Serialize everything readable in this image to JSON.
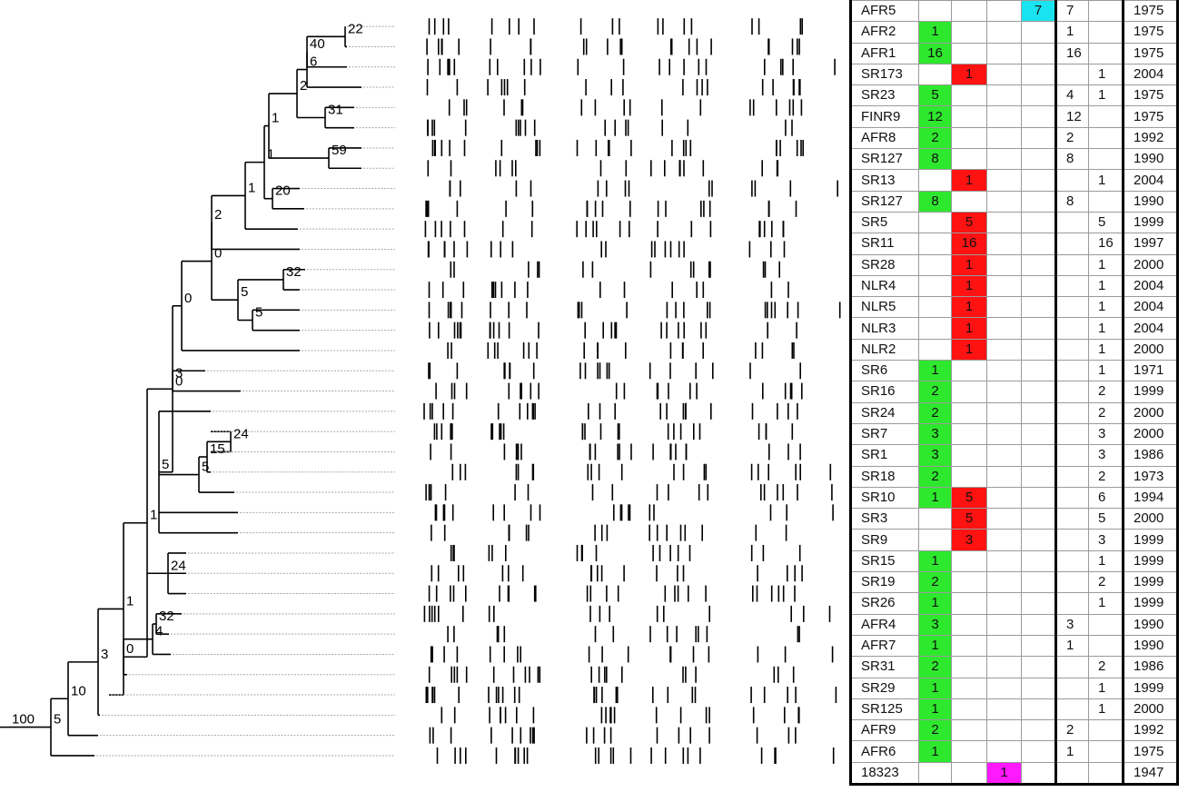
{
  "tree": {
    "bootstrap_values": [
      "22",
      "40",
      "6",
      "2",
      "31",
      "1",
      "59",
      "1",
      "20",
      "1",
      "2",
      "0",
      "32",
      "5",
      "5",
      "0",
      "0",
      "0",
      "3",
      "5",
      "1",
      "5",
      "24",
      "15",
      "24",
      "1",
      "4",
      "0",
      "32",
      "3",
      "10",
      "5",
      "100"
    ]
  },
  "table": {
    "group_colors": {
      "g": "#2ee82e",
      "r": "#ff1212",
      "c": "#19e3ee",
      "m": "#ff19ff"
    },
    "rows": [
      {
        "name": "AFR5",
        "g": "",
        "r": "",
        "m": "",
        "c": "7",
        "a": "7",
        "b": "",
        "year": "1975"
      },
      {
        "name": "AFR2",
        "g": "1",
        "r": "",
        "m": "",
        "c": "",
        "a": "1",
        "b": "",
        "year": "1975"
      },
      {
        "name": "AFR1",
        "g": "16",
        "r": "",
        "m": "",
        "c": "",
        "a": "16",
        "b": "",
        "year": "1975"
      },
      {
        "name": "SR173",
        "g": "",
        "r": "1",
        "m": "",
        "c": "",
        "a": "",
        "b": "1",
        "year": "2004"
      },
      {
        "name": "SR23",
        "g": "5",
        "r": "",
        "m": "",
        "c": "",
        "a": "4",
        "b": "1",
        "year": "1975"
      },
      {
        "name": "FINR9",
        "g": "12",
        "r": "",
        "m": "",
        "c": "",
        "a": "12",
        "b": "",
        "year": "1975"
      },
      {
        "name": "AFR8",
        "g": "2",
        "r": "",
        "m": "",
        "c": "",
        "a": "2",
        "b": "",
        "year": "1992"
      },
      {
        "name": "SR127",
        "g": "8",
        "r": "",
        "m": "",
        "c": "",
        "a": "8",
        "b": "",
        "year": "1990"
      },
      {
        "name": "SR13",
        "g": "",
        "r": "1",
        "m": "",
        "c": "",
        "a": "",
        "b": "1",
        "year": "2004"
      },
      {
        "name": "SR127",
        "g": "8",
        "r": "",
        "m": "",
        "c": "",
        "a": "8",
        "b": "",
        "year": "1990"
      },
      {
        "name": "SR5",
        "g": "",
        "r": "5",
        "m": "",
        "c": "",
        "a": "",
        "b": "5",
        "year": "1999"
      },
      {
        "name": "SR11",
        "g": "",
        "r": "16",
        "m": "",
        "c": "",
        "a": "",
        "b": "16",
        "year": "1997"
      },
      {
        "name": "SR28",
        "g": "",
        "r": "1",
        "m": "",
        "c": "",
        "a": "",
        "b": "1",
        "year": "2000"
      },
      {
        "name": "NLR4",
        "g": "",
        "r": "1",
        "m": "",
        "c": "",
        "a": "",
        "b": "1",
        "year": "2004"
      },
      {
        "name": "NLR5",
        "g": "",
        "r": "1",
        "m": "",
        "c": "",
        "a": "",
        "b": "1",
        "year": "2004"
      },
      {
        "name": "NLR3",
        "g": "",
        "r": "1",
        "m": "",
        "c": "",
        "a": "",
        "b": "1",
        "year": "2004"
      },
      {
        "name": "NLR2",
        "g": "",
        "r": "1",
        "m": "",
        "c": "",
        "a": "",
        "b": "1",
        "year": "2000"
      },
      {
        "name": "SR6",
        "g": "1",
        "r": "",
        "m": "",
        "c": "",
        "a": "",
        "b": "1",
        "year": "1971"
      },
      {
        "name": "SR16",
        "g": "2",
        "r": "",
        "m": "",
        "c": "",
        "a": "",
        "b": "2",
        "year": "1999"
      },
      {
        "name": "SR24",
        "g": "2",
        "r": "",
        "m": "",
        "c": "",
        "a": "",
        "b": "2",
        "year": "2000"
      },
      {
        "name": "SR7",
        "g": "3",
        "r": "",
        "m": "",
        "c": "",
        "a": "",
        "b": "3",
        "year": "2000"
      },
      {
        "name": "SR1",
        "g": "3",
        "r": "",
        "m": "",
        "c": "",
        "a": "",
        "b": "3",
        "year": "1986"
      },
      {
        "name": "SR18",
        "g": "2",
        "r": "",
        "m": "",
        "c": "",
        "a": "",
        "b": "2",
        "year": "1973"
      },
      {
        "name": "SR10",
        "g": "1",
        "r": "5",
        "m": "",
        "c": "",
        "a": "",
        "b": "6",
        "year": "1994"
      },
      {
        "name": "SR3",
        "g": "",
        "r": "5",
        "m": "",
        "c": "",
        "a": "",
        "b": "5",
        "year": "2000"
      },
      {
        "name": "SR9",
        "g": "",
        "r": "3",
        "m": "",
        "c": "",
        "a": "",
        "b": "3",
        "year": "1999"
      },
      {
        "name": "SR15",
        "g": "1",
        "r": "",
        "m": "",
        "c": "",
        "a": "",
        "b": "1",
        "year": "1999"
      },
      {
        "name": "SR19",
        "g": "2",
        "r": "",
        "m": "",
        "c": "",
        "a": "",
        "b": "2",
        "year": "1999"
      },
      {
        "name": "SR26",
        "g": "1",
        "r": "",
        "m": "",
        "c": "",
        "a": "",
        "b": "1",
        "year": "1999"
      },
      {
        "name": "AFR4",
        "g": "3",
        "r": "",
        "m": "",
        "c": "",
        "a": "3",
        "b": "",
        "year": "1990"
      },
      {
        "name": "AFR7",
        "g": "1",
        "r": "",
        "m": "",
        "c": "",
        "a": "1",
        "b": "",
        "year": "1990"
      },
      {
        "name": "SR31",
        "g": "2",
        "r": "",
        "m": "",
        "c": "",
        "a": "",
        "b": "2",
        "year": "1986"
      },
      {
        "name": "SR29",
        "g": "1",
        "r": "",
        "m": "",
        "c": "",
        "a": "",
        "b": "1",
        "year": "1999"
      },
      {
        "name": "SR125",
        "g": "1",
        "r": "",
        "m": "",
        "c": "",
        "a": "",
        "b": "1",
        "year": "2000"
      },
      {
        "name": "AFR9",
        "g": "2",
        "r": "",
        "m": "",
        "c": "",
        "a": "2",
        "b": "",
        "year": "1992"
      },
      {
        "name": "AFR6",
        "g": "1",
        "r": "",
        "m": "",
        "c": "",
        "a": "1",
        "b": "",
        "year": "1975"
      },
      {
        "name": "18323",
        "g": "",
        "r": "",
        "m": "1",
        "c": "",
        "a": "",
        "b": "",
        "year": "1947"
      }
    ]
  }
}
